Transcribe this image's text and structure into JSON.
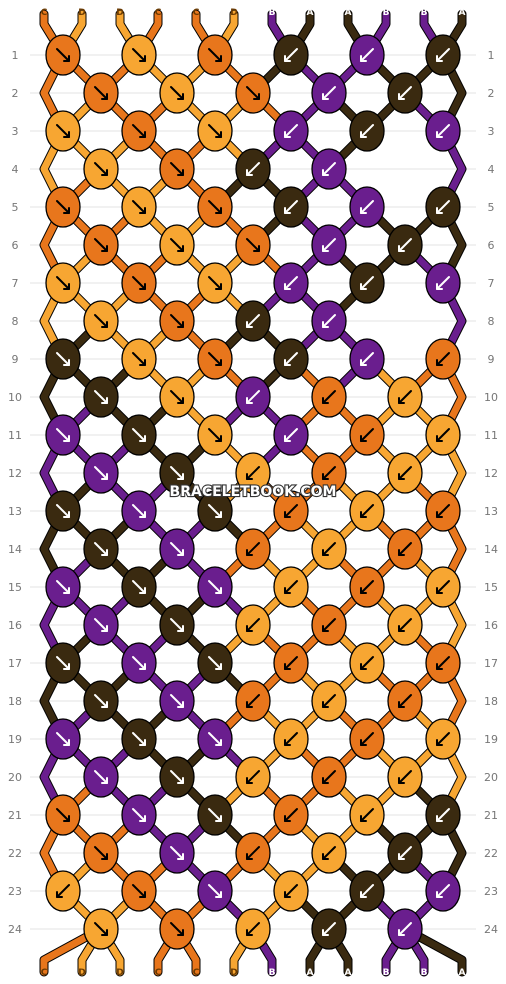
{
  "colors": {
    "A": "#3a2a10",
    "B": "#6a1e8e",
    "C": "#e8761c",
    "D": "#f7a632"
  },
  "strands_top": [
    "C",
    "D",
    "D",
    "C",
    "C",
    "D",
    "B",
    "A",
    "A",
    "B",
    "B",
    "A"
  ],
  "strands_bottom": [
    "C",
    "D",
    "D",
    "C",
    "C",
    "D",
    "B",
    "A",
    "A",
    "B",
    "B",
    "A"
  ],
  "row_count": 24,
  "row_numbers": [
    "1",
    "2",
    "3",
    "4",
    "5",
    "6",
    "7",
    "8",
    "9",
    "10",
    "11",
    "12",
    "13",
    "14",
    "15",
    "16",
    "17",
    "18",
    "19",
    "20",
    "21",
    "22",
    "23",
    "24"
  ],
  "knot_rows": [
    [
      "C",
      "D",
      "C",
      "A",
      "B",
      "A"
    ],
    [
      "C",
      "D",
      "C",
      "B",
      "A"
    ],
    [
      "D",
      "C",
      "D",
      "B",
      "A",
      "B"
    ],
    [
      "D",
      "C",
      "A",
      "B"
    ],
    [
      "C",
      "D",
      "C",
      "A",
      "B",
      "A"
    ],
    [
      "C",
      "D",
      "C",
      "B",
      "A"
    ],
    [
      "D",
      "C",
      "D",
      "B",
      "A",
      "B"
    ],
    [
      "D",
      "C",
      "A",
      "B"
    ],
    [
      "A",
      "D",
      "C",
      "A",
      "B",
      "C"
    ],
    [
      "A",
      "D",
      "B",
      "C",
      "D"
    ],
    [
      "B",
      "A",
      "D",
      "B",
      "C",
      "D"
    ],
    [
      "B",
      "A",
      "D",
      "C",
      "D"
    ],
    [
      "A",
      "B",
      "A",
      "C",
      "D",
      "C"
    ],
    [
      "A",
      "B",
      "C",
      "D",
      "C"
    ],
    [
      "B",
      "A",
      "B",
      "D",
      "C",
      "D"
    ],
    [
      "B",
      "A",
      "D",
      "C",
      "D"
    ],
    [
      "A",
      "B",
      "A",
      "C",
      "D",
      "C"
    ],
    [
      "A",
      "B",
      "C",
      "D",
      "C"
    ],
    [
      "B",
      "A",
      "B",
      "D",
      "C",
      "D"
    ],
    [
      "B",
      "A",
      "D",
      "C",
      "D"
    ],
    [
      "C",
      "B",
      "A",
      "C",
      "D",
      "A"
    ],
    [
      "C",
      "B",
      "C",
      "D",
      "A"
    ],
    [
      "D",
      "C",
      "B",
      "D",
      "A",
      "B"
    ],
    [
      "D",
      "C",
      "D",
      "A",
      "B"
    ]
  ],
  "arrow_rows": [
    [
      "dr",
      "dr",
      "dr",
      "dl",
      "dl",
      "dl"
    ],
    [
      "dr",
      "dr",
      "dr",
      "dl",
      "dl"
    ],
    [
      "dr",
      "dr",
      "dr",
      "dl",
      "dl",
      "dl"
    ],
    [
      "dr",
      "dr",
      "dl",
      "dl"
    ],
    [
      "dr",
      "dr",
      "dr",
      "dl",
      "dl",
      "dl"
    ],
    [
      "dr",
      "dr",
      "dr",
      "dl",
      "dl"
    ],
    [
      "dr",
      "dr",
      "dr",
      "dl",
      "dl",
      "dl"
    ],
    [
      "dr",
      "dr",
      "dl",
      "dl"
    ],
    [
      "dr",
      "dr",
      "dr",
      "dl",
      "dl",
      "dl"
    ],
    [
      "dr",
      "dr",
      "dl",
      "dl",
      "dl"
    ],
    [
      "dr",
      "dr",
      "dr",
      "dl",
      "dl",
      "dl"
    ],
    [
      "dr",
      "dr",
      "dl",
      "dl",
      "dl"
    ],
    [
      "dr",
      "dr",
      "dr",
      "dl",
      "dl",
      "dl"
    ],
    [
      "dr",
      "dr",
      "dl",
      "dl",
      "dl"
    ],
    [
      "dr",
      "dr",
      "dr",
      "dl",
      "dl",
      "dl"
    ],
    [
      "dr",
      "dr",
      "dl",
      "dl",
      "dl"
    ],
    [
      "dr",
      "dr",
      "dr",
      "dl",
      "dl",
      "dl"
    ],
    [
      "dr",
      "dr",
      "dl",
      "dl",
      "dl"
    ],
    [
      "dr",
      "dr",
      "dr",
      "dl",
      "dl",
      "dl"
    ],
    [
      "dr",
      "dr",
      "dl",
      "dl",
      "dl"
    ],
    [
      "dr",
      "dr",
      "dr",
      "dl",
      "dl",
      "dl"
    ],
    [
      "dr",
      "dr",
      "dl",
      "dl",
      "dl"
    ],
    [
      "dl",
      "dr",
      "dr",
      "dl",
      "dl",
      "dl"
    ],
    [
      "dr",
      "dr",
      "dl",
      "dl",
      "dl"
    ]
  ],
  "watermark": "BRACELETBOOK.COM"
}
